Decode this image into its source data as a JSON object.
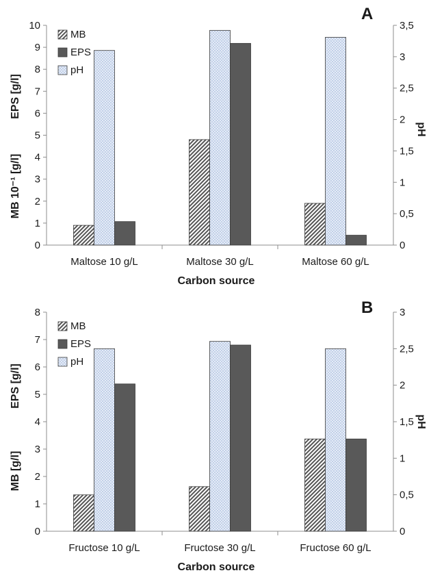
{
  "chart_data": [
    {
      "type": "bar",
      "panel_label": "A",
      "categories": [
        "Maltose 10 g/L",
        "Maltose 30 g/L",
        "Maltose 60 g/L"
      ],
      "series": [
        {
          "name": "MB",
          "axis": "left",
          "values": [
            0.9,
            4.8,
            1.9
          ],
          "color": "#555555",
          "pattern": "diagonal-hatch"
        },
        {
          "name": "pH",
          "axis": "right",
          "values": [
            3.1,
            3.42,
            3.31
          ],
          "color": "#dfe8f7",
          "pattern": "light-crosshatch"
        },
        {
          "name": "EPS",
          "axis": "left",
          "values": [
            1.07,
            9.18,
            0.45
          ],
          "color": "#595959",
          "pattern": "solid"
        }
      ],
      "legend": [
        "MB",
        "EPS",
        "pH"
      ],
      "legend_position": "top-left",
      "xlabel": "Carbon source",
      "ylabel_left_top": "EPS [g/l]",
      "ylabel_left_bottom": "MB 10⁻¹ [g/l]",
      "ylabel_right": "pH",
      "ylim_left": [
        0,
        10
      ],
      "ylim_right": [
        0,
        3.5
      ],
      "yticks_left": [
        "0",
        "1",
        "2",
        "3",
        "4",
        "5",
        "6",
        "7",
        "8",
        "9",
        "10"
      ],
      "yticks_right": [
        "0",
        "0,5",
        "1",
        "1,5",
        "2",
        "2,5",
        "3",
        "3,5"
      ],
      "grid": false
    },
    {
      "type": "bar",
      "panel_label": "B",
      "categories": [
        "Fructose 10 g/L",
        "Fructose 30 g/L",
        "Fructose 60 g/L"
      ],
      "series": [
        {
          "name": "MB",
          "axis": "left",
          "values": [
            1.33,
            1.63,
            3.37
          ],
          "color": "#555555",
          "pattern": "diagonal-hatch"
        },
        {
          "name": "pH",
          "axis": "right",
          "values": [
            2.5,
            2.6,
            2.5
          ],
          "color": "#dfe8f7",
          "pattern": "light-crosshatch"
        },
        {
          "name": "EPS",
          "axis": "left",
          "values": [
            5.38,
            6.8,
            3.37
          ],
          "color": "#595959",
          "pattern": "solid"
        }
      ],
      "legend": [
        "MB",
        "EPS",
        "pH"
      ],
      "legend_position": "top-left",
      "xlabel": "Carbon source",
      "ylabel_left_top": "EPS [g/l]",
      "ylabel_left_bottom": "MB [g/l]",
      "ylabel_right": "pH",
      "ylim_left": [
        0,
        8
      ],
      "ylim_right": [
        0,
        3
      ],
      "yticks_left": [
        "0",
        "1",
        "2",
        "3",
        "4",
        "5",
        "6",
        "7",
        "8"
      ],
      "yticks_right": [
        "0",
        "0,5",
        "1",
        "1,5",
        "2",
        "2,5",
        "3"
      ],
      "grid": false
    }
  ]
}
